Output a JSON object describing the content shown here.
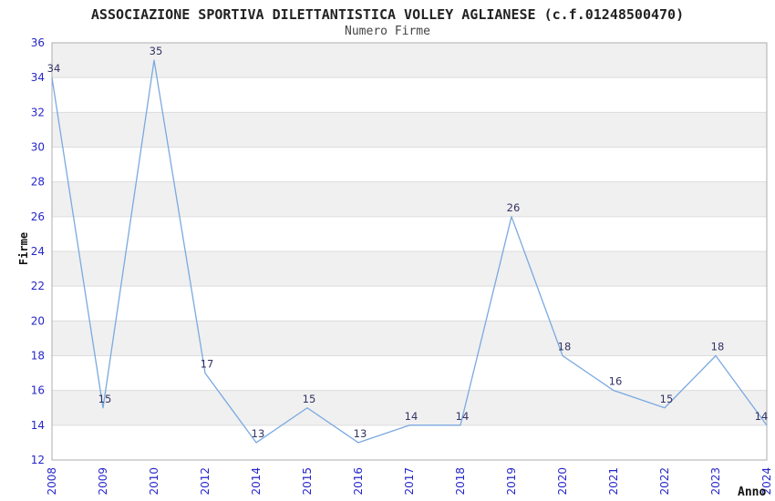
{
  "chart_data": {
    "type": "line",
    "title": "ASSOCIAZIONE SPORTIVA DILETTANTISTICA VOLLEY AGLIANESE (c.f.01248500470)",
    "subtitle": "Numero Firme",
    "xlabel": "Anno",
    "ylabel": "Firme",
    "categories": [
      "2008",
      "2009",
      "2010",
      "2012",
      "2014",
      "2015",
      "2016",
      "2017",
      "2018",
      "2019",
      "2020",
      "2021",
      "2022",
      "2023",
      "2024"
    ],
    "values": [
      34,
      15,
      35,
      17,
      13,
      15,
      13,
      14,
      14,
      26,
      18,
      16,
      15,
      18,
      14
    ],
    "ylim": [
      12,
      36
    ],
    "ytick_step": 2,
    "grid": true,
    "band_fill": "alternating",
    "legend_position": "none"
  },
  "colors": {
    "line": "#7aa9e0",
    "tick_label": "#2626c9",
    "value_label": "#333366",
    "band": "#f0f0f0",
    "grid": "#dcdcdc",
    "frame": "#aeaeae",
    "title": "#222222",
    "subtitle": "#444444",
    "axis_title": "#111111",
    "background": "#ffffff"
  }
}
